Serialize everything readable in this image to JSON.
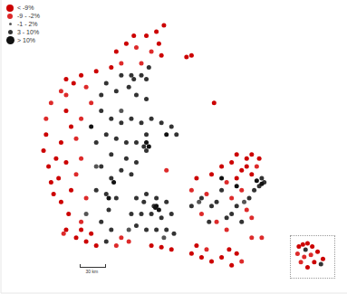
{
  "chart_data": [
    {
      "type": "scatter",
      "xlim": [
        7.3,
        14.2
      ],
      "ylim": [
        54.3,
        58.0
      ],
      "tick_labels": false,
      "legend": "top-left",
      "scale_bar": {
        "value": 30,
        "label": "30 km"
      },
      "series": [
        {
          "name": "< -9%",
          "color": "#cc0000",
          "marker": "circle",
          "points": [
            [
              10.55,
              57.68
            ],
            [
              10.4,
              57.6
            ],
            [
              10.2,
              57.55
            ],
            [
              9.95,
              57.55
            ],
            [
              9.8,
              57.45
            ],
            [
              9.6,
              57.35
            ],
            [
              10.45,
              57.45
            ],
            [
              10.5,
              57.3
            ],
            [
              9.5,
              57.15
            ],
            [
              9.2,
              57.1
            ],
            [
              8.9,
              57.05
            ],
            [
              8.6,
              57.0
            ],
            [
              8.75,
              56.95
            ],
            [
              11.0,
              57.28
            ],
            [
              11.1,
              57.3
            ],
            [
              8.2,
              56.3
            ],
            [
              8.15,
              56.1
            ],
            [
              8.25,
              55.9
            ],
            [
              8.3,
              55.7
            ],
            [
              8.35,
              55.55
            ],
            [
              8.5,
              55.45
            ],
            [
              8.6,
              56.6
            ],
            [
              8.7,
              56.4
            ],
            [
              8.5,
              56.2
            ],
            [
              8.6,
              55.95
            ],
            [
              8.45,
              55.75
            ],
            [
              8.7,
              55.6
            ],
            [
              8.65,
              55.3
            ],
            [
              8.6,
              55.1
            ],
            [
              8.8,
              55.0
            ],
            [
              8.4,
              56.0
            ],
            [
              9.2,
              54.9
            ],
            [
              9.0,
              54.95
            ],
            [
              8.9,
              55.1
            ],
            [
              9.1,
              55.05
            ],
            [
              10.5,
              54.88
            ],
            [
              10.7,
              54.85
            ],
            [
              10.3,
              54.9
            ],
            [
              12.0,
              56.05
            ],
            [
              12.2,
              56.0
            ],
            [
              12.3,
              56.05
            ],
            [
              12.45,
              56.0
            ],
            [
              12.2,
              55.9
            ],
            [
              12.1,
              55.85
            ],
            [
              11.9,
              55.95
            ],
            [
              11.7,
              55.9
            ],
            [
              12.3,
              55.8
            ],
            [
              12.0,
              55.75
            ],
            [
              11.5,
              55.8
            ],
            [
              11.2,
              55.75
            ],
            [
              11.1,
              54.8
            ],
            [
              11.3,
              54.75
            ],
            [
              11.5,
              54.7
            ],
            [
              11.7,
              54.75
            ],
            [
              11.9,
              54.65
            ],
            [
              12.0,
              54.8
            ],
            [
              11.85,
              54.85
            ],
            [
              11.2,
              54.9
            ],
            [
              11.55,
              56.7
            ]
          ]
        },
        {
          "name": "-9 - -2%",
          "color": "#dd2a2a",
          "marker": "circle",
          "points": [
            [
              10.0,
              57.4
            ],
            [
              10.3,
              57.35
            ],
            [
              10.1,
              57.2
            ],
            [
              9.7,
              57.2
            ],
            [
              9.0,
              56.9
            ],
            [
              8.5,
              56.85
            ],
            [
              8.3,
              56.7
            ],
            [
              8.2,
              56.5
            ],
            [
              8.9,
              56.5
            ],
            [
              8.8,
              56.25
            ],
            [
              8.9,
              56.0
            ],
            [
              8.8,
              55.8
            ],
            [
              9.0,
              55.5
            ],
            [
              8.9,
              55.2
            ],
            [
              8.55,
              55.05
            ],
            [
              9.1,
              56.7
            ],
            [
              8.6,
              56.8
            ],
            [
              9.7,
              55.0
            ],
            [
              9.85,
              54.95
            ],
            [
              9.6,
              54.9
            ],
            [
              12.4,
              55.9
            ],
            [
              11.8,
              55.7
            ],
            [
              12.1,
              55.6
            ],
            [
              11.9,
              55.5
            ],
            [
              11.4,
              55.55
            ],
            [
              11.1,
              55.6
            ],
            [
              11.3,
              55.3
            ],
            [
              11.6,
              55.2
            ],
            [
              12.2,
              55.35
            ],
            [
              12.3,
              55.25
            ],
            [
              11.8,
              55.1
            ],
            [
              11.4,
              54.85
            ],
            [
              12.1,
              54.7
            ],
            [
              12.3,
              55.0
            ],
            [
              12.5,
              55.0
            ],
            [
              10.6,
              55.85
            ]
          ]
        },
        {
          "name": "-1 - 2%",
          "color": "#555555",
          "marker": "circle",
          "points": [
            [
              9.2,
              55.9
            ],
            [
              9.0,
              55.3
            ],
            [
              9.7,
              56.6
            ],
            [
              10.55,
              55.0
            ],
            [
              9.85,
              55.1
            ],
            [
              11.25,
              55.45
            ],
            [
              12.15,
              55.45
            ]
          ]
        },
        {
          "name": "3 - 10%",
          "color": "#333333",
          "marker": "circle",
          "points": [
            [
              9.9,
              57.05
            ],
            [
              9.95,
              57.0
            ],
            [
              10.1,
              57.05
            ],
            [
              10.2,
              57.0
            ],
            [
              9.7,
              57.05
            ],
            [
              10.25,
              57.15
            ],
            [
              9.85,
              56.9
            ],
            [
              9.6,
              56.85
            ],
            [
              10.0,
              56.8
            ],
            [
              10.2,
              56.75
            ],
            [
              9.4,
              56.95
            ],
            [
              9.3,
              56.8
            ],
            [
              9.3,
              56.6
            ],
            [
              9.5,
              56.5
            ],
            [
              9.7,
              56.45
            ],
            [
              9.9,
              56.5
            ],
            [
              10.1,
              56.45
            ],
            [
              10.3,
              56.5
            ],
            [
              10.5,
              56.45
            ],
            [
              10.7,
              56.4
            ],
            [
              10.8,
              56.3
            ],
            [
              10.2,
              56.3
            ],
            [
              10.0,
              56.2
            ],
            [
              10.15,
              56.15
            ],
            [
              10.2,
              56.1
            ],
            [
              9.8,
              56.2
            ],
            [
              9.6,
              56.25
            ],
            [
              9.4,
              56.3
            ],
            [
              9.2,
              56.2
            ],
            [
              9.5,
              56.05
            ],
            [
              9.8,
              56.0
            ],
            [
              10.0,
              55.95
            ],
            [
              9.7,
              55.85
            ],
            [
              9.9,
              55.8
            ],
            [
              9.5,
              55.75
            ],
            [
              9.3,
              55.9
            ],
            [
              9.2,
              55.6
            ],
            [
              9.4,
              55.55
            ],
            [
              9.6,
              55.5
            ],
            [
              9.45,
              55.35
            ],
            [
              9.3,
              55.2
            ],
            [
              9.5,
              55.1
            ],
            [
              9.4,
              54.95
            ],
            [
              10.0,
              55.5
            ],
            [
              10.2,
              55.55
            ],
            [
              10.4,
              55.5
            ],
            [
              10.6,
              55.45
            ],
            [
              10.7,
              55.3
            ],
            [
              10.5,
              55.25
            ],
            [
              10.3,
              55.3
            ],
            [
              10.1,
              55.3
            ],
            [
              9.9,
              55.3
            ],
            [
              10.0,
              55.15
            ],
            [
              10.2,
              55.1
            ],
            [
              10.4,
              55.1
            ],
            [
              10.6,
              55.1
            ],
            [
              10.75,
              55.05
            ],
            [
              10.35,
              55.4
            ],
            [
              10.15,
              55.45
            ],
            [
              12.5,
              55.75
            ],
            [
              12.55,
              55.7
            ],
            [
              12.45,
              55.65
            ],
            [
              12.35,
              55.6
            ],
            [
              12.25,
              55.5
            ],
            [
              11.7,
              55.6
            ],
            [
              11.5,
              55.4
            ],
            [
              11.9,
              55.3
            ],
            [
              11.6,
              55.45
            ],
            [
              11.1,
              55.4
            ],
            [
              11.3,
              55.5
            ],
            [
              12.0,
              55.4
            ],
            [
              11.8,
              55.25
            ],
            [
              11.45,
              55.2
            ],
            [
              12.1,
              55.2
            ]
          ]
        },
        {
          "name": "> 10%",
          "color": "#111111",
          "marker": "circle",
          "points": [
            [
              10.2,
              56.2
            ],
            [
              10.25,
              56.15
            ],
            [
              9.55,
              55.7
            ],
            [
              9.45,
              55.5
            ],
            [
              9.1,
              56.4
            ],
            [
              10.6,
              56.3
            ],
            [
              10.4,
              55.4
            ],
            [
              10.38,
              55.38
            ],
            [
              10.45,
              55.35
            ],
            [
              12.5,
              55.68
            ],
            [
              12.4,
              55.72
            ],
            [
              11.7,
              55.75
            ],
            [
              12.0,
              55.65
            ]
          ]
        }
      ]
    },
    {
      "type": "scatter",
      "xlim": [
        14.6,
        15.25
      ],
      "ylim": [
        54.95,
        55.35
      ],
      "tick_labels": false,
      "series": [
        {
          "color": "#cc0000",
          "marker": "circle",
          "points": [
            [
              14.72,
              55.25
            ],
            [
              14.78,
              55.27
            ],
            [
              14.85,
              55.28
            ],
            [
              14.92,
              55.25
            ],
            [
              15.0,
              55.2
            ],
            [
              15.08,
              55.13
            ],
            [
              14.95,
              55.1
            ],
            [
              14.85,
              55.05
            ]
          ]
        },
        {
          "color": "#dd2a2a",
          "marker": "circle",
          "points": [
            [
              14.75,
              55.1
            ],
            [
              14.7,
              55.18
            ],
            [
              14.8,
              55.15
            ],
            [
              14.9,
              55.17
            ]
          ]
        },
        {
          "color": "#333333",
          "marker": "circle",
          "points": [
            [
              14.82,
              55.22
            ],
            [
              15.05,
              55.08
            ]
          ]
        }
      ]
    }
  ]
}
